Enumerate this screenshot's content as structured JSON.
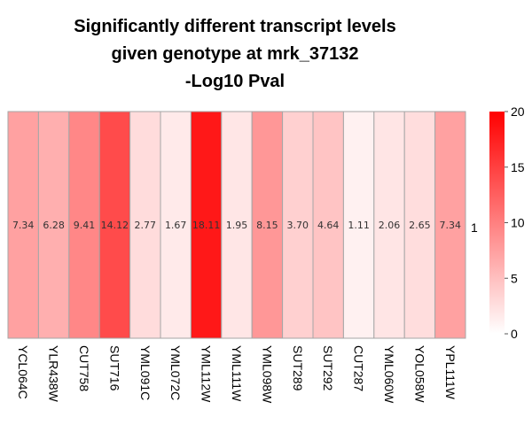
{
  "chart_data": {
    "type": "heatmap",
    "title": [
      "Significantly different transcript levels",
      "given genotype at mrk_37132",
      "-Log10 Pval"
    ],
    "rows": [
      "1"
    ],
    "columns": [
      "YCL064C",
      "YLR438W",
      "CUT758",
      "SUT716",
      "YML091C",
      "YML072C",
      "YML112W",
      "YML111W",
      "YML098W",
      "SUT289",
      "SUT292",
      "CUT287",
      "YML060W",
      "YOL058W",
      "YPL111W"
    ],
    "values": [
      7.34,
      6.28,
      9.41,
      14.12,
      2.77,
      1.67,
      18.11,
      1.95,
      8.15,
      3.7,
      4.64,
      1.11,
      2.06,
      2.65,
      7.34
    ],
    "cell_labels": [
      "7.34",
      "6.28",
      "9.41",
      "14.12",
      "2.77",
      "1.67",
      "18.11",
      "1.95",
      "8.15",
      "3.70",
      "4.64",
      "1.11",
      "2.06",
      "2.65",
      "7.34"
    ],
    "color_scale": {
      "min": 0,
      "max": 20,
      "low_color": "#ffffff",
      "high_color": "#ff0000"
    },
    "legend": {
      "placement": "right",
      "ticks": [
        "0",
        "5",
        "10",
        "15",
        "20"
      ],
      "tick_values": [
        0,
        5,
        10,
        15,
        20
      ]
    }
  }
}
